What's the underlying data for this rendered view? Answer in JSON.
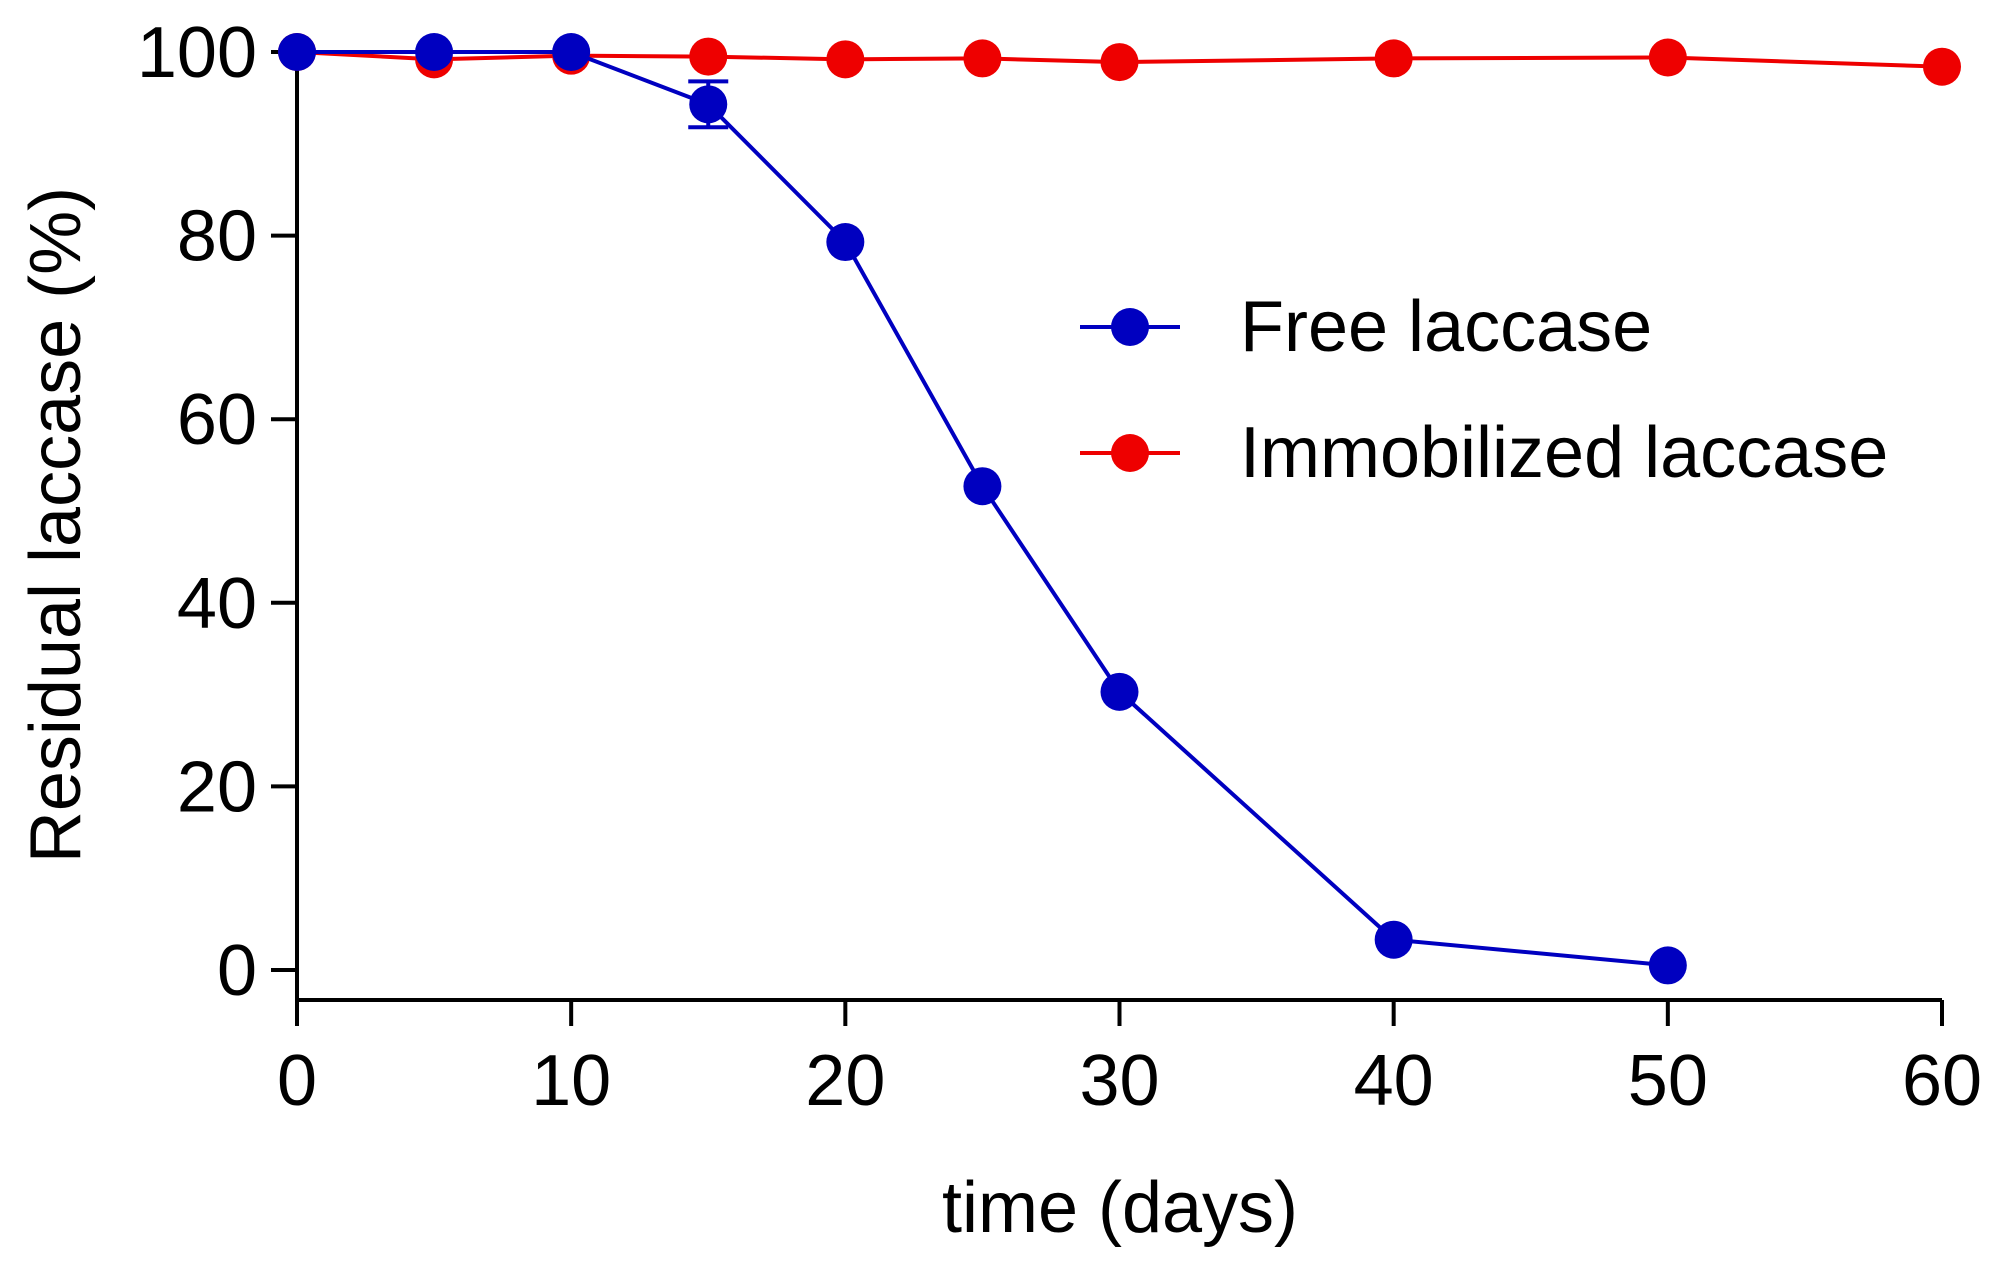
{
  "chart_data": {
    "type": "line",
    "title": "",
    "xlabel": "time (days)",
    "ylabel": "Residual laccase (%)",
    "xlim": [
      0,
      60
    ],
    "ylim": [
      0,
      100
    ],
    "xticks": [
      0,
      10,
      20,
      30,
      40,
      50,
      60
    ],
    "yticks": [
      0,
      20,
      40,
      60,
      80,
      100
    ],
    "grid": false,
    "legend_position": "right-center",
    "series": [
      {
        "name": "Free laccase",
        "color": "#0000c0",
        "x": [
          0,
          5,
          10,
          15,
          20,
          25,
          30,
          40,
          50
        ],
        "y": [
          100,
          100,
          100,
          94.3,
          79.3,
          52.7,
          30.3,
          3.3,
          0.5
        ],
        "error": [
          0,
          0,
          0,
          2.5,
          0,
          0,
          0,
          0,
          0
        ]
      },
      {
        "name": "Immobilized laccase",
        "color": "#ee0000",
        "x": [
          0,
          5,
          10,
          15,
          20,
          25,
          30,
          40,
          50,
          60
        ],
        "y": [
          100,
          99.2,
          99.6,
          99.5,
          99.2,
          99.3,
          98.9,
          99.3,
          99.4,
          98.4
        ],
        "error": [
          0,
          0,
          0,
          0,
          0,
          0,
          0,
          0,
          0,
          0
        ]
      }
    ]
  }
}
